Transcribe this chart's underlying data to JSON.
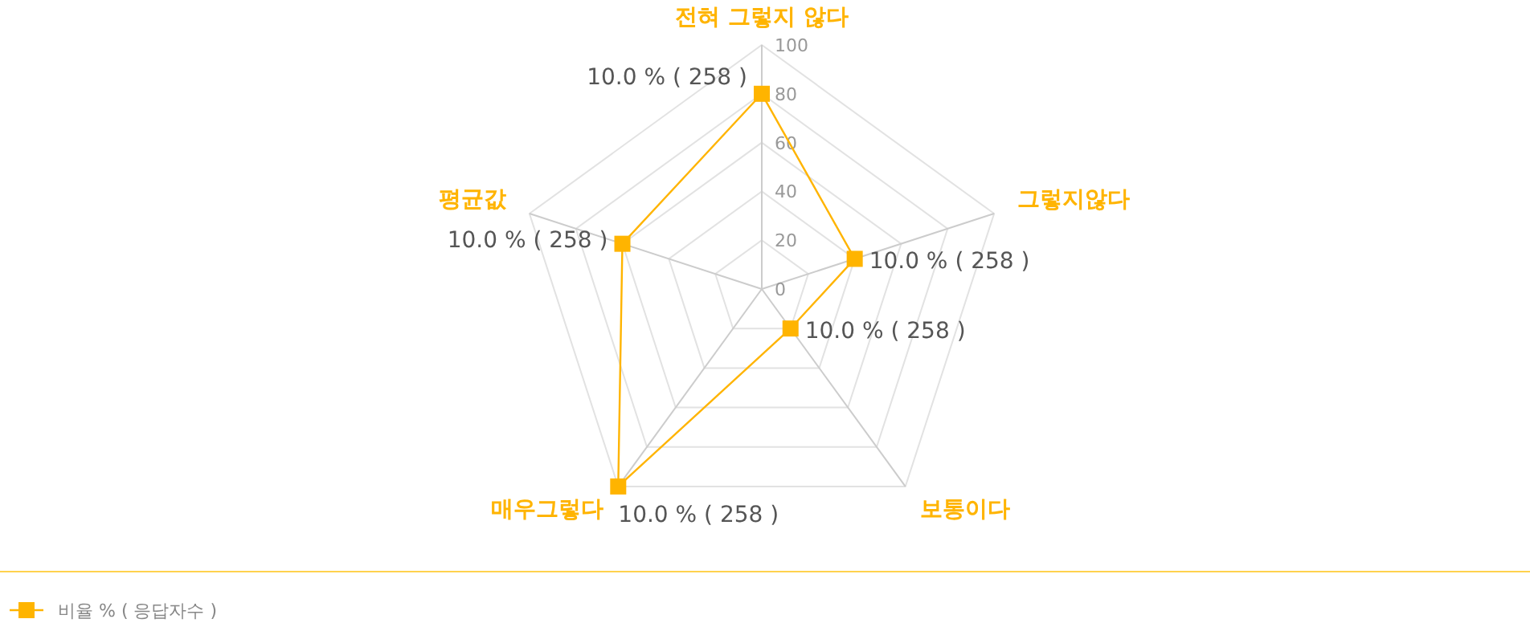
{
  "chart_data": {
    "type": "radar",
    "categories": [
      "전혀 그렇지 않다",
      "그렇지않다",
      "보통이다",
      "매우그렇다",
      "평균값"
    ],
    "series": [
      {
        "name": "비율 % ( 응답자수 )",
        "color": "#ffb400",
        "values": [
          80,
          40,
          20,
          100,
          60
        ]
      }
    ],
    "annotations": [
      "10.0 % ( 258 )",
      "10.0 % ( 258 )",
      "10.0 % ( 258 )",
      "10.0 % ( 258 )",
      "10.0 % ( 258 )"
    ],
    "ylim": [
      0,
      100
    ],
    "yticks": [
      0,
      20,
      40,
      60,
      80,
      100
    ],
    "marker": "square",
    "grid": true,
    "legend": "bottom left"
  }
}
